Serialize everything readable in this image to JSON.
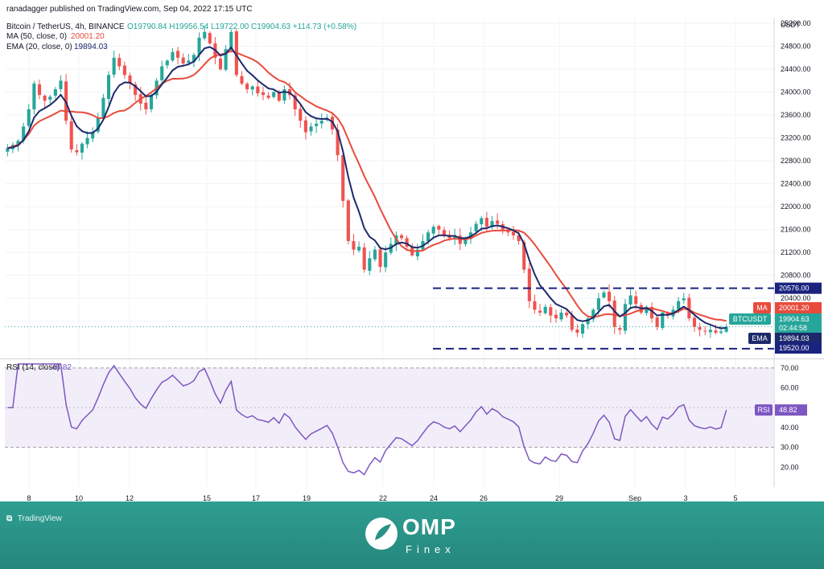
{
  "header": {
    "published": "ranadagger published on TradingView.com, Sep 04, 2022 17:15 UTC"
  },
  "legend": {
    "symbol": "Bitcoin / TetherUS, 4h, BINANCE",
    "ohlc": "O19790.84  H19956.54  L19722.00  C19904.63  +114.73 (+0.58%)",
    "ma_label": "MA (50, close, 0)",
    "ma_value": "20001.20",
    "ema_label": "EMA (20, close, 0)",
    "ema_value": "19894.03",
    "rsi_label": "RSI (14, close)",
    "rsi_value": "48.82"
  },
  "colors": {
    "up": "#26a69a",
    "down": "#ef5350",
    "ma": "#e84b3c",
    "ema": "#1c2a6b",
    "level": "#1a237e",
    "rsi": "#7e57c2",
    "grid": "#f0f3fa"
  },
  "chart_data": [
    {
      "type": "line",
      "title": "Bitcoin / TetherUS, 4h, BINANCE",
      "currency": "USDT",
      "y_ticks": [
        20000,
        20400,
        20800,
        21200,
        21600,
        22000,
        22400,
        22800,
        23200,
        23600,
        24000,
        24400,
        24800,
        25200
      ],
      "y_tick_labels": [
        "20000.00",
        "20400.00",
        "20800.00",
        "21200.00",
        "21600.00",
        "22000.00",
        "22400.00",
        "22800.00",
        "23200.00",
        "23600.00",
        "24000.00",
        "24400.00",
        "24800.00",
        "25200.00"
      ],
      "x_tick_labels": [
        "8",
        "10",
        "12",
        "15",
        "17",
        "19",
        "22",
        "24",
        "26",
        "29",
        "Sep",
        "3",
        "5"
      ],
      "ylim": [
        19350,
        25300
      ],
      "candles_close": [
        23020,
        23080,
        23150,
        23400,
        23700,
        24150,
        23950,
        23850,
        23920,
        24050,
        24200,
        23500,
        23000,
        22950,
        23100,
        23200,
        23300,
        23550,
        23900,
        24300,
        24600,
        24450,
        24300,
        24150,
        23950,
        23800,
        23700,
        23950,
        24200,
        24450,
        24550,
        24700,
        24600,
        24500,
        24550,
        24650,
        24950,
        25050,
        24850,
        24600,
        24400,
        24750,
        25050,
        24300,
        24150,
        24050,
        24100,
        23980,
        23950,
        23900,
        24000,
        23850,
        24050,
        23950,
        23700,
        23500,
        23300,
        23400,
        23450,
        23500,
        23550,
        23350,
        22900,
        22100,
        21400,
        21250,
        21300,
        20900,
        21100,
        21250,
        20950,
        21200,
        21350,
        21500,
        21450,
        21300,
        21150,
        21250,
        21400,
        21550,
        21650,
        21600,
        21500,
        21450,
        21500,
        21350,
        21450,
        21550,
        21700,
        21800,
        21650,
        21750,
        21700,
        21600,
        21550,
        21500,
        21400,
        20900,
        20350,
        20200,
        20150,
        20250,
        20100,
        20050,
        20150,
        20100,
        19850,
        19800,
        19950,
        20050,
        20200,
        20400,
        20500,
        20350,
        19900,
        19850,
        20300,
        20450,
        20300,
        20150,
        20250,
        20050,
        19900,
        20150,
        20100,
        20200,
        20350,
        20400,
        20050,
        19900,
        19850,
        19820,
        19850,
        19800,
        19820,
        19905
      ],
      "ma": {
        "name": "MA",
        "period": 50,
        "last": 20001.2
      },
      "ema": {
        "name": "EMA",
        "period": 20,
        "last": 19894.03
      },
      "levels": [
        20576.0,
        19520.0
      ],
      "markers": [
        {
          "tag": "MA",
          "value": "20001.20"
        },
        {
          "tag": "BTCUSDT",
          "value": "19904.63",
          "sub": "02:44:58"
        },
        {
          "tag": "EMA",
          "value": "19894.03"
        },
        {
          "tag": "",
          "value": "20576.00"
        },
        {
          "tag": "",
          "value": "19520.00"
        }
      ]
    },
    {
      "type": "line",
      "title": "RSI (14, close)",
      "y_ticks": [
        20,
        30,
        40,
        50,
        60,
        70
      ],
      "y_tick_labels": [
        "20.00",
        "30.00",
        "40.00",
        "50.00",
        "60.00",
        "70.00"
      ],
      "ylim": [
        10,
        74
      ],
      "bands": [
        30,
        70
      ],
      "last": 48.82,
      "marker": {
        "tag": "RSI",
        "value": "48.82"
      }
    }
  ],
  "footer": {
    "tradingview": "TradingView",
    "brand_name": "OMP",
    "brand_sub": "Finex"
  }
}
